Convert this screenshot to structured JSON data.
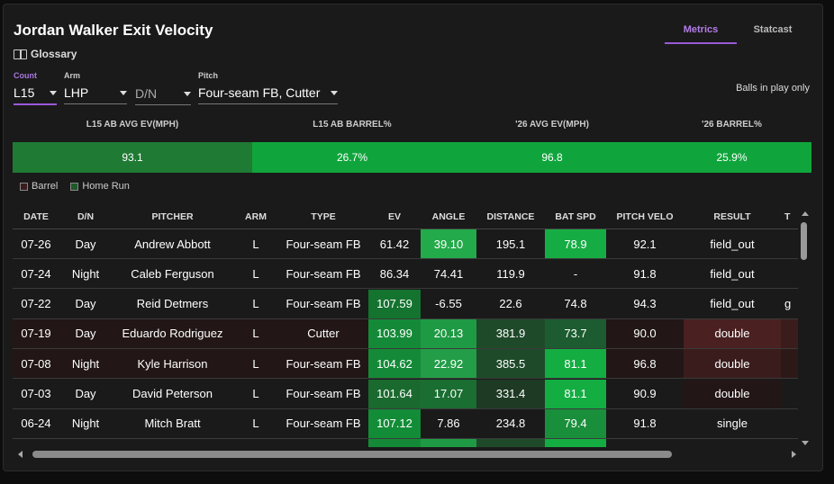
{
  "title": "Jordan Walker Exit Velocity",
  "glossary": {
    "icon": "book-icon",
    "label": "Glossary"
  },
  "tabs": [
    {
      "label": "Metrics",
      "active": true
    },
    {
      "label": "Statcast",
      "active": false
    }
  ],
  "filters": {
    "count": {
      "label": "Count",
      "value": "L15"
    },
    "arm": {
      "label": "Arm",
      "value": "LHP"
    },
    "dn": {
      "label": "",
      "value": "D/N"
    },
    "pitch": {
      "label": "Pitch",
      "value": "Four-seam FB, Cutter"
    }
  },
  "balls_in_play_label": "Balls in play only",
  "summary": {
    "headers": [
      "L15 AB AVG EV(MPH)",
      "L15 AB BARREL%",
      "'26 AVG EV(MPH)",
      "'26 BARREL%"
    ],
    "values": [
      "93.1",
      "26.7%",
      "96.8",
      "25.9%"
    ]
  },
  "legend": [
    {
      "label": "Barrel",
      "color": "#3a1c1c"
    },
    {
      "label": "Home Run",
      "color": "#1e5a2a"
    }
  ],
  "table": {
    "columns": [
      "DATE",
      "D/N",
      "PITCHER",
      "ARM",
      "TYPE",
      "EV",
      "ANGLE",
      "DISTANCE",
      "BAT SPD",
      "PITCH VELO",
      "RESULT",
      "T"
    ],
    "rows": [
      [
        "07-26",
        "Day",
        "Andrew Abbott",
        "L",
        "Four-seam FB",
        "61.42",
        "39.10",
        "195.1",
        "78.9",
        "92.1",
        "field_out",
        ""
      ],
      [
        "07-24",
        "Night",
        "Caleb Ferguson",
        "L",
        "Four-seam FB",
        "86.34",
        "74.41",
        "119.9",
        "-",
        "91.8",
        "field_out",
        ""
      ],
      [
        "07-22",
        "Day",
        "Reid Detmers",
        "L",
        "Four-seam FB",
        "107.59",
        "-6.55",
        "22.6",
        "74.8",
        "94.3",
        "field_out",
        "g"
      ],
      [
        "07-19",
        "Day",
        "Eduardo Rodriguez",
        "L",
        "Cutter",
        "103.99",
        "20.13",
        "381.9",
        "73.7",
        "90.0",
        "double",
        ""
      ],
      [
        "07-08",
        "Night",
        "Kyle Harrison",
        "L",
        "Four-seam FB",
        "104.62",
        "22.92",
        "385.5",
        "81.1",
        "96.8",
        "double",
        ""
      ],
      [
        "07-03",
        "Day",
        "David Peterson",
        "L",
        "Four-seam FB",
        "101.64",
        "17.07",
        "331.4",
        "81.1",
        "90.9",
        "double",
        ""
      ],
      [
        "06-24",
        "Night",
        "Mitch Bratt",
        "L",
        "Four-seam FB",
        "107.12",
        "7.86",
        "234.8",
        "79.4",
        "91.8",
        "single",
        ""
      ]
    ]
  }
}
